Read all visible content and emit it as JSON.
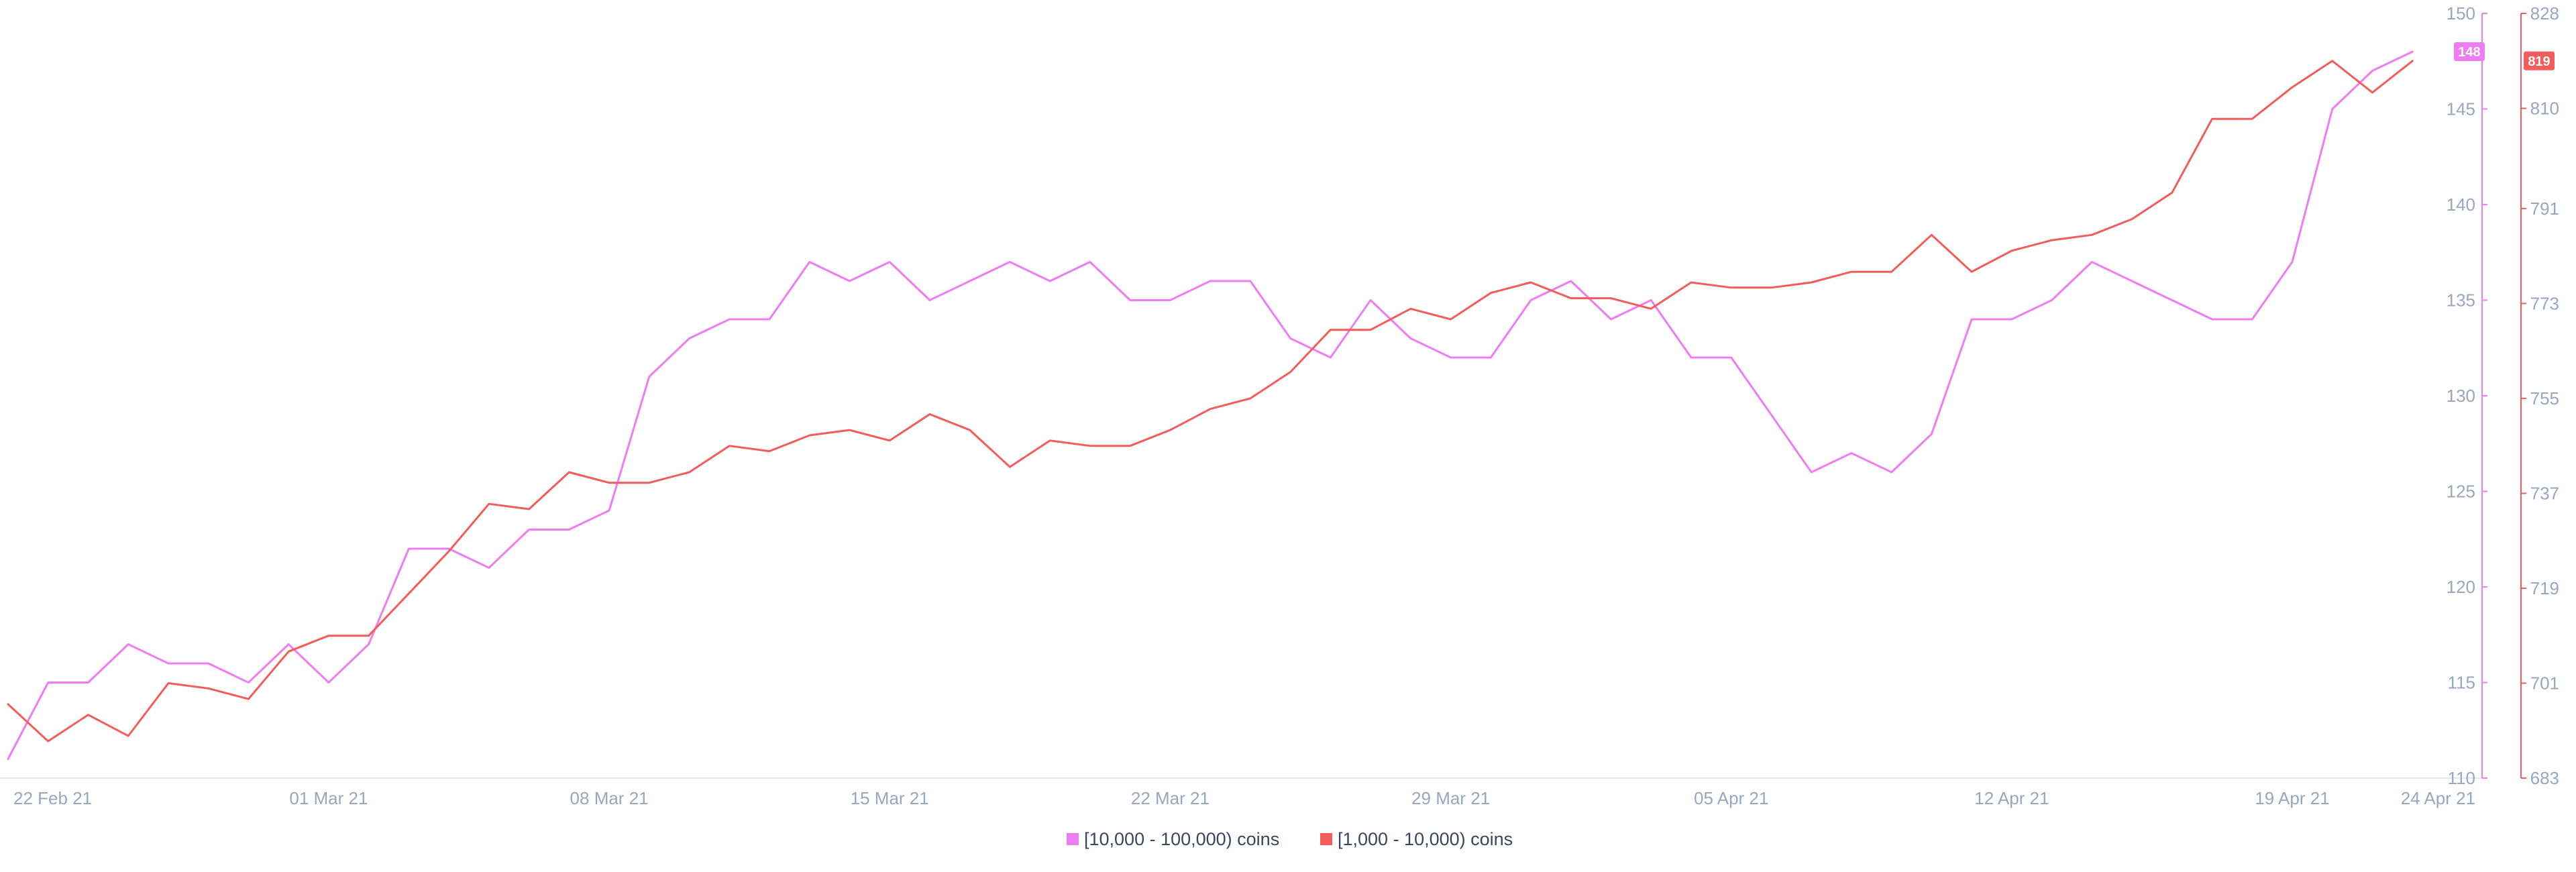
{
  "chart_data": {
    "type": "line",
    "x_tick_labels": [
      "22 Feb 21",
      "01 Mar 21",
      "08 Mar 21",
      "15 Mar 21",
      "22 Mar 21",
      "29 Mar 21",
      "05 Apr 21",
      "12 Apr 21",
      "19 Apr 21",
      "24 Apr 21"
    ],
    "x_tick_days": [
      1,
      8,
      15,
      22,
      29,
      36,
      43,
      50,
      57,
      61
    ],
    "x_range_days": [
      0,
      61
    ],
    "y_left": {
      "ticks": [
        110,
        115,
        120,
        125,
        130,
        135,
        140,
        145,
        150
      ],
      "range": [
        110,
        150
      ],
      "color": "#f07cf3"
    },
    "y_right": {
      "ticks": [
        683,
        701,
        719,
        737,
        755,
        773,
        791,
        810,
        828
      ],
      "range": [
        683,
        828
      ],
      "color": "#f45b5b"
    },
    "legend_position": "bottom-center",
    "grid": false,
    "series": [
      {
        "name": "[10,000 - 100,000) coins",
        "axis": "left",
        "color": "#f07cf3",
        "days": [
          0,
          1,
          2,
          3,
          4,
          5,
          6,
          7,
          8,
          9,
          10,
          11,
          12,
          13,
          14,
          15,
          16,
          17,
          18,
          19,
          20,
          21,
          22,
          23,
          24,
          25,
          26,
          27,
          28,
          29,
          30,
          31,
          32,
          33,
          34,
          35,
          36,
          37,
          38,
          39,
          40,
          41,
          42,
          43,
          44,
          45,
          46,
          47,
          48,
          49,
          50,
          51,
          52,
          53,
          54,
          55,
          56,
          57,
          58,
          59,
          60
        ],
        "values": [
          111,
          115,
          115,
          117,
          116,
          116,
          115,
          117,
          115,
          117,
          122,
          122,
          121,
          123,
          123,
          124,
          131,
          133,
          134,
          134,
          137,
          136,
          137,
          135,
          136,
          137,
          136,
          137,
          135,
          135,
          136,
          136,
          133,
          132,
          135,
          133,
          132,
          132,
          135,
          136,
          134,
          135,
          132,
          132,
          129,
          126,
          127,
          126,
          128,
          134,
          134,
          135,
          137,
          136,
          135,
          134,
          134,
          137,
          145,
          147,
          148
        ],
        "last_value_badge": "148"
      },
      {
        "name": "[1,000 - 10,000) coins",
        "axis": "right",
        "color": "#f45b5b",
        "days": [
          0,
          1,
          2,
          3,
          4,
          5,
          6,
          7,
          8,
          9,
          10,
          11,
          12,
          13,
          14,
          15,
          16,
          17,
          18,
          19,
          20,
          21,
          22,
          23,
          24,
          25,
          26,
          27,
          28,
          29,
          30,
          31,
          32,
          33,
          34,
          35,
          36,
          37,
          38,
          39,
          40,
          41,
          42,
          43,
          44,
          45,
          46,
          47,
          48,
          49,
          50,
          51,
          52,
          53,
          54,
          55,
          56,
          57,
          58,
          59,
          60
        ],
        "values": [
          697,
          690,
          695,
          691,
          701,
          700,
          698,
          707,
          710,
          710,
          718,
          726,
          735,
          734,
          741,
          739,
          739,
          741,
          746,
          745,
          748,
          749,
          747,
          752,
          749,
          742,
          747,
          746,
          746,
          749,
          753,
          755,
          760,
          768,
          768,
          772,
          770,
          775,
          777,
          774,
          774,
          772,
          777,
          776,
          776,
          777,
          779,
          779,
          786,
          779,
          783,
          785,
          786,
          789,
          794,
          808,
          808,
          814,
          819,
          813,
          819
        ],
        "last_value_badge": "819"
      }
    ]
  }
}
